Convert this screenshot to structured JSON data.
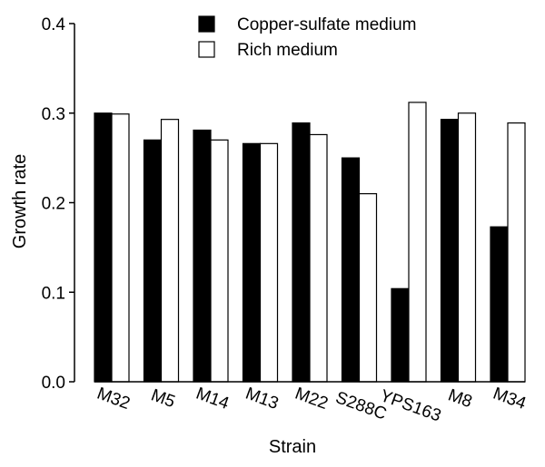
{
  "chart_data": {
    "type": "bar",
    "title": "",
    "xlabel": "Strain",
    "ylabel": "Growth rate",
    "ylim": [
      0,
      0.4
    ],
    "yticks": [
      "0.0",
      "0.1",
      "0.2",
      "0.3",
      "0.4"
    ],
    "ytick_values": [
      0.0,
      0.1,
      0.2,
      0.3,
      0.4
    ],
    "categories": [
      "M32",
      "M5",
      "M14",
      "M13",
      "M22",
      "S288C",
      "YPS163",
      "M8",
      "M34"
    ],
    "series": [
      {
        "name": "Copper-sulfate medium",
        "color": "#000000",
        "values": [
          0.3,
          0.27,
          0.281,
          0.266,
          0.289,
          0.25,
          0.104,
          0.293,
          0.173
        ]
      },
      {
        "name": "Rich medium",
        "color": "#ffffff",
        "values": [
          0.299,
          0.293,
          0.27,
          0.266,
          0.276,
          0.21,
          0.312,
          0.3,
          0.289
        ]
      }
    ],
    "legend_position": "top",
    "grid": false
  }
}
